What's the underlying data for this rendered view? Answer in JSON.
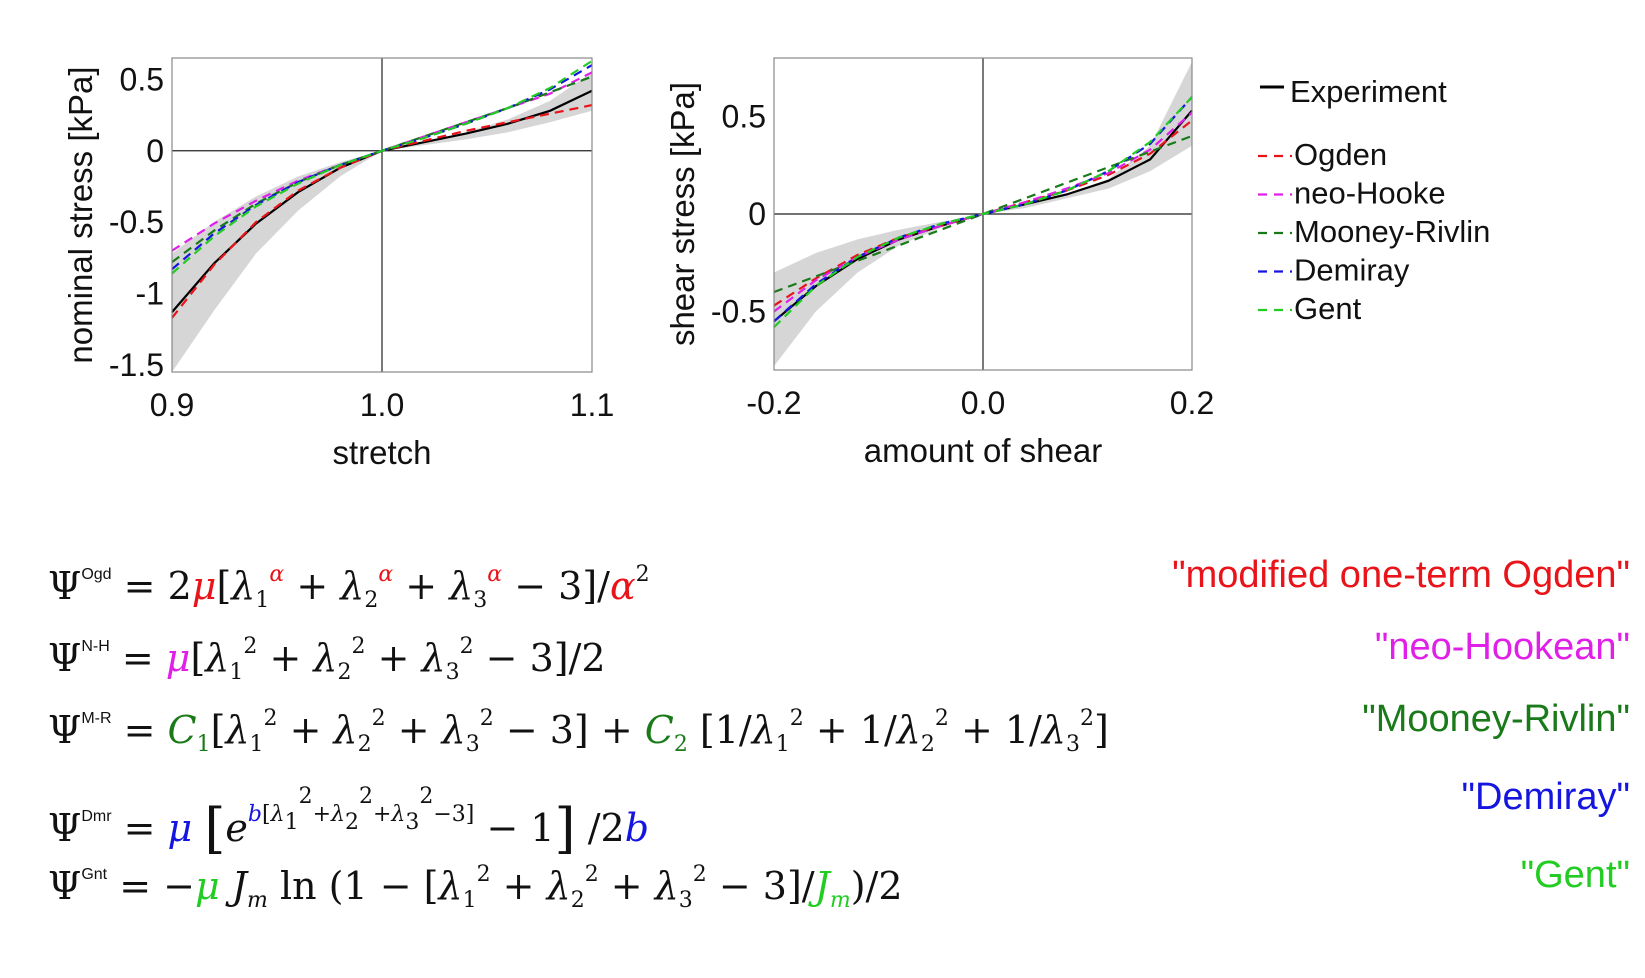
{
  "colors": {
    "experiment": "#000000",
    "ogden": "#e8141a",
    "neohooke": "#e020e8",
    "mooney": "#1a7a1a",
    "demiray": "#1515e0",
    "gent": "#22cc22",
    "band": "#d6d6d6"
  },
  "legend": {
    "items": [
      {
        "label": "Experiment",
        "key": "experiment",
        "style": "solid"
      },
      {
        "label": "Ogden",
        "key": "ogden",
        "style": "dashed"
      },
      {
        "label": "neo-Hooke",
        "key": "neohooke",
        "style": "dashed"
      },
      {
        "label": "Mooney-Rivlin",
        "key": "mooney",
        "style": "dashed"
      },
      {
        "label": "Demiray",
        "key": "demiray",
        "style": "dashed"
      },
      {
        "label": "Gent",
        "key": "gent",
        "style": "dashed"
      }
    ],
    "position": "right"
  },
  "chart_data": [
    {
      "type": "line",
      "title": "",
      "xlabel": "stretch",
      "ylabel": "nominal stress [kPa]",
      "xlim": [
        0.9,
        1.1
      ],
      "ylim": [
        -1.55,
        0.65
      ],
      "xticks": [
        0.9,
        1.0,
        1.1
      ],
      "xticklabels": [
        "0.9",
        "1.0",
        "1.1"
      ],
      "yticks": [
        0.5,
        0,
        -0.5,
        -1,
        -1.5
      ],
      "yticklabels": [
        "0.5",
        "0",
        "-0.5",
        "-1",
        "-1.5"
      ],
      "zero_lines": true,
      "band": {
        "x": [
          0.9,
          0.92,
          0.94,
          0.96,
          0.98,
          1.0,
          1.02,
          1.04,
          1.06,
          1.08,
          1.1
        ],
        "upper": [
          -0.72,
          -0.5,
          -0.32,
          -0.18,
          -0.08,
          0,
          0.06,
          0.13,
          0.22,
          0.35,
          0.55
        ],
        "lower": [
          -1.55,
          -1.12,
          -0.72,
          -0.42,
          -0.18,
          0,
          0.04,
          0.08,
          0.13,
          0.2,
          0.28
        ]
      },
      "series": [
        {
          "name": "Experiment",
          "key": "experiment",
          "x": [
            0.9,
            0.92,
            0.94,
            0.96,
            0.98,
            1.0,
            1.02,
            1.04,
            1.06,
            1.08,
            1.1
          ],
          "y": [
            -1.13,
            -0.79,
            -0.51,
            -0.29,
            -0.12,
            0,
            0.06,
            0.12,
            0.19,
            0.28,
            0.42
          ]
        },
        {
          "name": "Ogden",
          "key": "ogden",
          "x": [
            0.9,
            0.92,
            0.94,
            0.96,
            0.98,
            1.0,
            1.02,
            1.04,
            1.06,
            1.08,
            1.1
          ],
          "y": [
            -1.17,
            -0.8,
            -0.5,
            -0.28,
            -0.12,
            0,
            0.07,
            0.14,
            0.2,
            0.26,
            0.32
          ]
        },
        {
          "name": "neo-Hooke",
          "key": "neohooke",
          "x": [
            0.9,
            0.92,
            0.94,
            0.96,
            0.98,
            1.0,
            1.02,
            1.04,
            1.06,
            1.08,
            1.1
          ],
          "y": [
            -0.7,
            -0.51,
            -0.35,
            -0.21,
            -0.1,
            0,
            0.1,
            0.2,
            0.3,
            0.4,
            0.55
          ]
        },
        {
          "name": "Mooney-Rivlin",
          "key": "mooney",
          "x": [
            0.9,
            0.92,
            0.94,
            0.96,
            0.98,
            1.0,
            1.02,
            1.04,
            1.06,
            1.08,
            1.1
          ],
          "y": [
            -0.78,
            -0.56,
            -0.37,
            -0.22,
            -0.1,
            0,
            0.1,
            0.2,
            0.3,
            0.41,
            0.52
          ]
        },
        {
          "name": "Demiray",
          "key": "demiray",
          "x": [
            0.9,
            0.92,
            0.94,
            0.96,
            0.98,
            1.0,
            1.02,
            1.04,
            1.06,
            1.08,
            1.1
          ],
          "y": [
            -0.83,
            -0.58,
            -0.38,
            -0.22,
            -0.1,
            0,
            0.09,
            0.19,
            0.3,
            0.43,
            0.6
          ]
        },
        {
          "name": "Gent",
          "key": "gent",
          "x": [
            0.9,
            0.92,
            0.94,
            0.96,
            0.98,
            1.0,
            1.02,
            1.04,
            1.06,
            1.08,
            1.1
          ],
          "y": [
            -0.86,
            -0.6,
            -0.39,
            -0.23,
            -0.1,
            0,
            0.09,
            0.19,
            0.3,
            0.44,
            0.63
          ]
        }
      ]
    },
    {
      "type": "line",
      "title": "",
      "xlabel": "amount of shear",
      "ylabel": "shear stress [kPa]",
      "xlim": [
        -0.2,
        0.2
      ],
      "ylim": [
        -0.8,
        0.8
      ],
      "xticks": [
        -0.2,
        0.0,
        0.2
      ],
      "xticklabels": [
        "-0.2",
        "0.0",
        "0.2"
      ],
      "yticks": [
        0.5,
        0,
        -0.5
      ],
      "yticklabels": [
        "0.5",
        "0",
        "-0.5"
      ],
      "zero_lines": true,
      "band": {
        "x": [
          -0.2,
          -0.16,
          -0.12,
          -0.08,
          -0.04,
          0,
          0.04,
          0.08,
          0.12,
          0.16,
          0.2
        ],
        "upper": [
          -0.3,
          -0.2,
          -0.13,
          -0.08,
          -0.04,
          0,
          0.05,
          0.1,
          0.18,
          0.35,
          0.78
        ],
        "lower": [
          -0.78,
          -0.5,
          -0.3,
          -0.16,
          -0.07,
          0,
          0.03,
          0.08,
          0.13,
          0.22,
          0.35
        ]
      },
      "series": [
        {
          "name": "Experiment",
          "key": "experiment",
          "x": [
            -0.2,
            -0.16,
            -0.12,
            -0.08,
            -0.04,
            0,
            0.04,
            0.08,
            0.12,
            0.16,
            0.2
          ],
          "y": [
            -0.55,
            -0.37,
            -0.23,
            -0.13,
            -0.06,
            0,
            0.05,
            0.1,
            0.17,
            0.28,
            0.53
          ]
        },
        {
          "name": "Ogden",
          "key": "ogden",
          "x": [
            -0.2,
            -0.16,
            -0.12,
            -0.08,
            -0.04,
            0,
            0.04,
            0.08,
            0.12,
            0.16,
            0.2
          ],
          "y": [
            -0.47,
            -0.33,
            -0.21,
            -0.12,
            -0.06,
            0,
            0.06,
            0.12,
            0.2,
            0.31,
            0.48
          ]
        },
        {
          "name": "neo-Hooke",
          "key": "neohooke",
          "x": [
            -0.2,
            -0.16,
            -0.12,
            -0.08,
            -0.04,
            0,
            0.04,
            0.08,
            0.12,
            0.16,
            0.2
          ],
          "y": [
            -0.5,
            -0.34,
            -0.22,
            -0.13,
            -0.06,
            0,
            0.06,
            0.13,
            0.21,
            0.33,
            0.52
          ]
        },
        {
          "name": "Mooney-Rivlin",
          "key": "mooney",
          "x": [
            -0.2,
            -0.16,
            -0.12,
            -0.08,
            -0.04,
            0,
            0.04,
            0.08,
            0.12,
            0.16,
            0.2
          ],
          "y": [
            -0.4,
            -0.32,
            -0.24,
            -0.16,
            -0.08,
            0,
            0.08,
            0.16,
            0.24,
            0.32,
            0.4
          ]
        },
        {
          "name": "Demiray",
          "key": "demiray",
          "x": [
            -0.2,
            -0.16,
            -0.12,
            -0.08,
            -0.04,
            0,
            0.04,
            0.08,
            0.12,
            0.16,
            0.2
          ],
          "y": [
            -0.55,
            -0.36,
            -0.22,
            -0.12,
            -0.05,
            0,
            0.05,
            0.12,
            0.22,
            0.36,
            0.6
          ]
        },
        {
          "name": "Gent",
          "key": "gent",
          "x": [
            -0.2,
            -0.16,
            -0.12,
            -0.08,
            -0.04,
            0,
            0.04,
            0.08,
            0.12,
            0.16,
            0.2
          ],
          "y": [
            -0.58,
            -0.37,
            -0.22,
            -0.12,
            -0.05,
            0,
            0.05,
            0.12,
            0.22,
            0.37,
            0.6
          ]
        }
      ]
    }
  ],
  "equations": [
    {
      "key": "ogden",
      "name": "\"modified one-term Ogden\""
    },
    {
      "key": "neohooke",
      "name": "\"neo-Hookean\""
    },
    {
      "key": "mooney",
      "name": "\"Mooney-Rivlin\""
    },
    {
      "key": "demiray",
      "name": "\"Demiray\""
    },
    {
      "key": "gent",
      "name": "\"Gent\""
    }
  ],
  "eq_labels": {
    "ogd": "Ogd",
    "nh": "N-H",
    "mr": "M-R",
    "dmr": "Dmr",
    "gnt": "Gnt"
  }
}
